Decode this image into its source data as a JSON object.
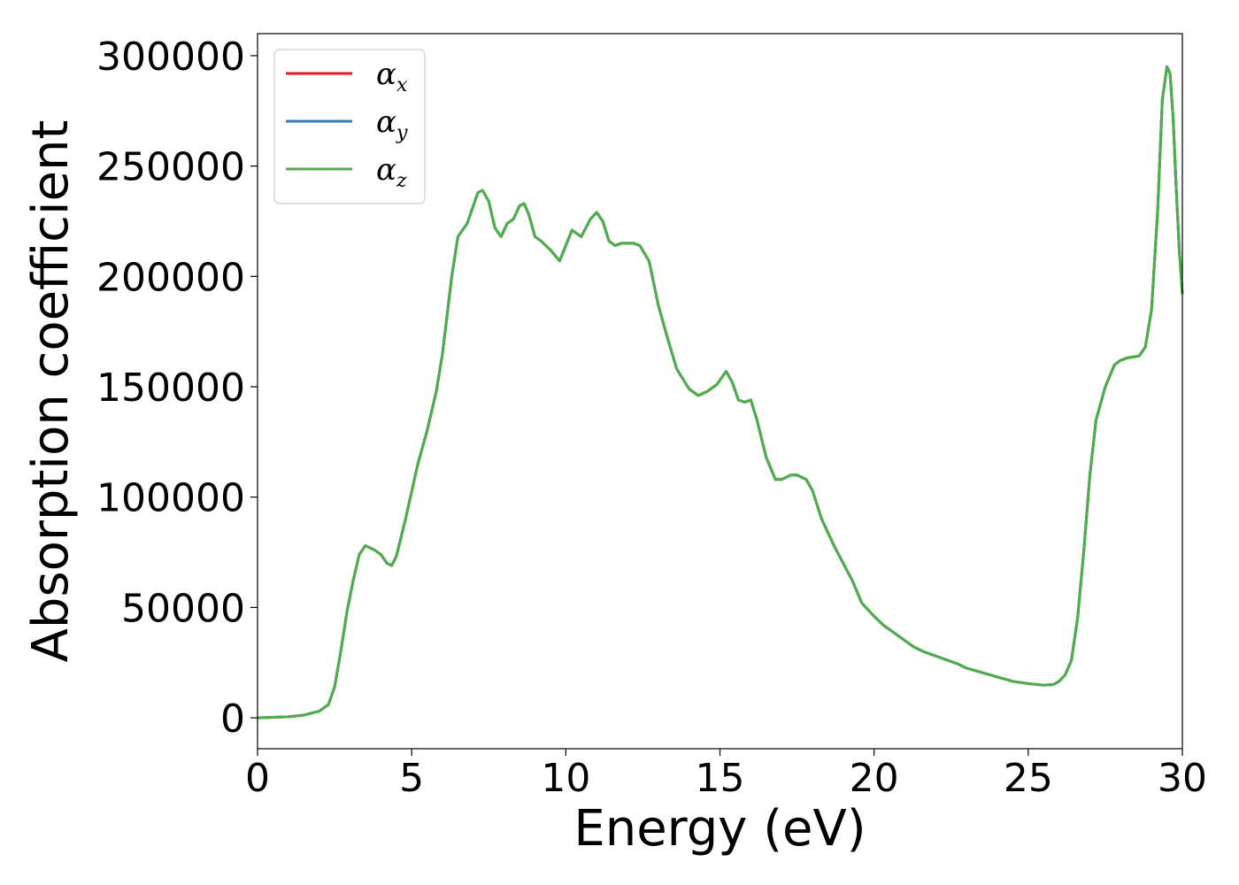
{
  "chart_data": {
    "type": "line",
    "xlabel": "Energy (eV)",
    "ylabel": "Absorption coefficient",
    "xlim": [
      0,
      30
    ],
    "ylim": [
      -14000,
      310000
    ],
    "xticks": [
      0,
      5,
      10,
      15,
      20,
      25,
      30
    ],
    "xtick_labels": [
      "0",
      "5",
      "10",
      "15",
      "20",
      "25",
      "30"
    ],
    "yticks": [
      0,
      50000,
      100000,
      150000,
      200000,
      250000,
      300000
    ],
    "ytick_labels": [
      "0",
      "50000",
      "100000",
      "150000",
      "200000",
      "250000",
      "300000"
    ],
    "grid": false,
    "legend_position": "top-left",
    "x": [
      0,
      1,
      1.5,
      2,
      2.3,
      2.5,
      2.7,
      2.9,
      3.1,
      3.3,
      3.5,
      3.65,
      3.8,
      4.0,
      4.2,
      4.35,
      4.5,
      4.8,
      5.2,
      5.5,
      5.8,
      6.0,
      6.3,
      6.5,
      6.8,
      7.0,
      7.15,
      7.3,
      7.5,
      7.7,
      7.9,
      8.1,
      8.3,
      8.5,
      8.65,
      8.8,
      9.0,
      9.2,
      9.5,
      9.8,
      10.0,
      10.2,
      10.5,
      10.8,
      11.0,
      11.2,
      11.4,
      11.6,
      11.8,
      12.0,
      12.2,
      12.4,
      12.7,
      13.0,
      13.3,
      13.6,
      14.0,
      14.3,
      14.6,
      14.9,
      15.2,
      15.4,
      15.6,
      15.8,
      16.0,
      16.2,
      16.5,
      16.8,
      17.0,
      17.3,
      17.5,
      17.8,
      18.0,
      18.3,
      18.7,
      19.0,
      19.3,
      19.6,
      20.0,
      20.3,
      20.7,
      21.0,
      21.3,
      21.6,
      22.0,
      22.3,
      22.7,
      23.0,
      23.5,
      24.0,
      24.5,
      25.0,
      25.5,
      25.8,
      26.0,
      26.2,
      26.4,
      26.6,
      26.8,
      27.0,
      27.2,
      27.5,
      27.8,
      28.0,
      28.2,
      28.4,
      28.6,
      28.8,
      29.0,
      29.2,
      29.35,
      29.5,
      29.6,
      29.7,
      29.8,
      29.9,
      30.0
    ],
    "series": [
      {
        "name": "αx",
        "color": "#e41a1c",
        "values": [
          0,
          500,
          1200,
          3000,
          6000,
          14000,
          30000,
          48000,
          62000,
          74000,
          78000,
          77000,
          76000,
          74000,
          70000,
          69000,
          73000,
          90000,
          115000,
          130000,
          148000,
          165000,
          200000,
          218000,
          224000,
          232000,
          238000,
          239000,
          234000,
          222000,
          218000,
          224000,
          226000,
          232000,
          233000,
          228000,
          218000,
          216000,
          212000,
          207000,
          214000,
          221000,
          218000,
          226000,
          229000,
          225000,
          216000,
          214000,
          215000,
          215000,
          215000,
          214000,
          207000,
          187000,
          172000,
          158000,
          149000,
          146000,
          148000,
          151000,
          157000,
          152000,
          144000,
          143000,
          144000,
          135000,
          118000,
          108000,
          108000,
          110000,
          110000,
          108000,
          103000,
          90000,
          78000,
          70000,
          62000,
          52000,
          46000,
          42000,
          38000,
          35000,
          32000,
          30000,
          28000,
          26500,
          24500,
          22500,
          20500,
          18500,
          16500,
          15500,
          14800,
          15000,
          16500,
          19500,
          26000,
          45000,
          75000,
          110000,
          135000,
          150000,
          160000,
          162000,
          163000,
          163500,
          164000,
          168000,
          185000,
          230000,
          280000,
          295000,
          292000,
          272000,
          240000,
          212000,
          192000
        ]
      },
      {
        "name": "αy",
        "color": "#377eb8",
        "values": [
          0,
          500,
          1200,
          3000,
          6000,
          14000,
          30000,
          48000,
          62000,
          74000,
          78000,
          77000,
          76000,
          74000,
          70000,
          69000,
          73000,
          90000,
          115000,
          130000,
          148000,
          165000,
          200000,
          218000,
          224000,
          232000,
          238000,
          239000,
          234000,
          222000,
          218000,
          224000,
          226000,
          232000,
          233000,
          228000,
          218000,
          216000,
          212000,
          207000,
          214000,
          221000,
          218000,
          226000,
          229000,
          225000,
          216000,
          214000,
          215000,
          215000,
          215000,
          214000,
          207000,
          187000,
          172000,
          158000,
          149000,
          146000,
          148000,
          151000,
          157000,
          152000,
          144000,
          143000,
          144000,
          135000,
          118000,
          108000,
          108000,
          110000,
          110000,
          108000,
          103000,
          90000,
          78000,
          70000,
          62000,
          52000,
          46000,
          42000,
          38000,
          35000,
          32000,
          30000,
          28000,
          26500,
          24500,
          22500,
          20500,
          18500,
          16500,
          15500,
          14800,
          15000,
          16500,
          19500,
          26000,
          45000,
          75000,
          110000,
          135000,
          150000,
          160000,
          162000,
          163000,
          163500,
          164000,
          168000,
          185000,
          230000,
          280000,
          295000,
          292000,
          272000,
          240000,
          212000,
          192000
        ]
      },
      {
        "name": "αz",
        "color": "#4daf4a",
        "values": [
          0,
          500,
          1200,
          3000,
          6000,
          14000,
          30000,
          48000,
          62000,
          74000,
          78000,
          77000,
          76000,
          74000,
          70000,
          69000,
          73000,
          90000,
          115000,
          130000,
          148000,
          165000,
          200000,
          218000,
          224000,
          232000,
          238000,
          239000,
          234000,
          222000,
          218000,
          224000,
          226000,
          232000,
          233000,
          228000,
          218000,
          216000,
          212000,
          207000,
          214000,
          221000,
          218000,
          226000,
          229000,
          225000,
          216000,
          214000,
          215000,
          215000,
          215000,
          214000,
          207000,
          187000,
          172000,
          158000,
          149000,
          146000,
          148000,
          151000,
          157000,
          152000,
          144000,
          143000,
          144000,
          135000,
          118000,
          108000,
          108000,
          110000,
          110000,
          108000,
          103000,
          90000,
          78000,
          70000,
          62000,
          52000,
          46000,
          42000,
          38000,
          35000,
          32000,
          30000,
          28000,
          26500,
          24500,
          22500,
          20500,
          18500,
          16500,
          15500,
          14800,
          15000,
          16500,
          19500,
          26000,
          45000,
          75000,
          110000,
          135000,
          150000,
          160000,
          162000,
          163000,
          163500,
          164000,
          168000,
          185000,
          230000,
          280000,
          295000,
          292000,
          272000,
          240000,
          212000,
          192000
        ]
      }
    ],
    "legend": [
      {
        "symbol": "α",
        "sub": "x",
        "color": "#e41a1c"
      },
      {
        "symbol": "α",
        "sub": "y",
        "color": "#377eb8"
      },
      {
        "symbol": "α",
        "sub": "z",
        "color": "#4daf4a"
      }
    ]
  }
}
